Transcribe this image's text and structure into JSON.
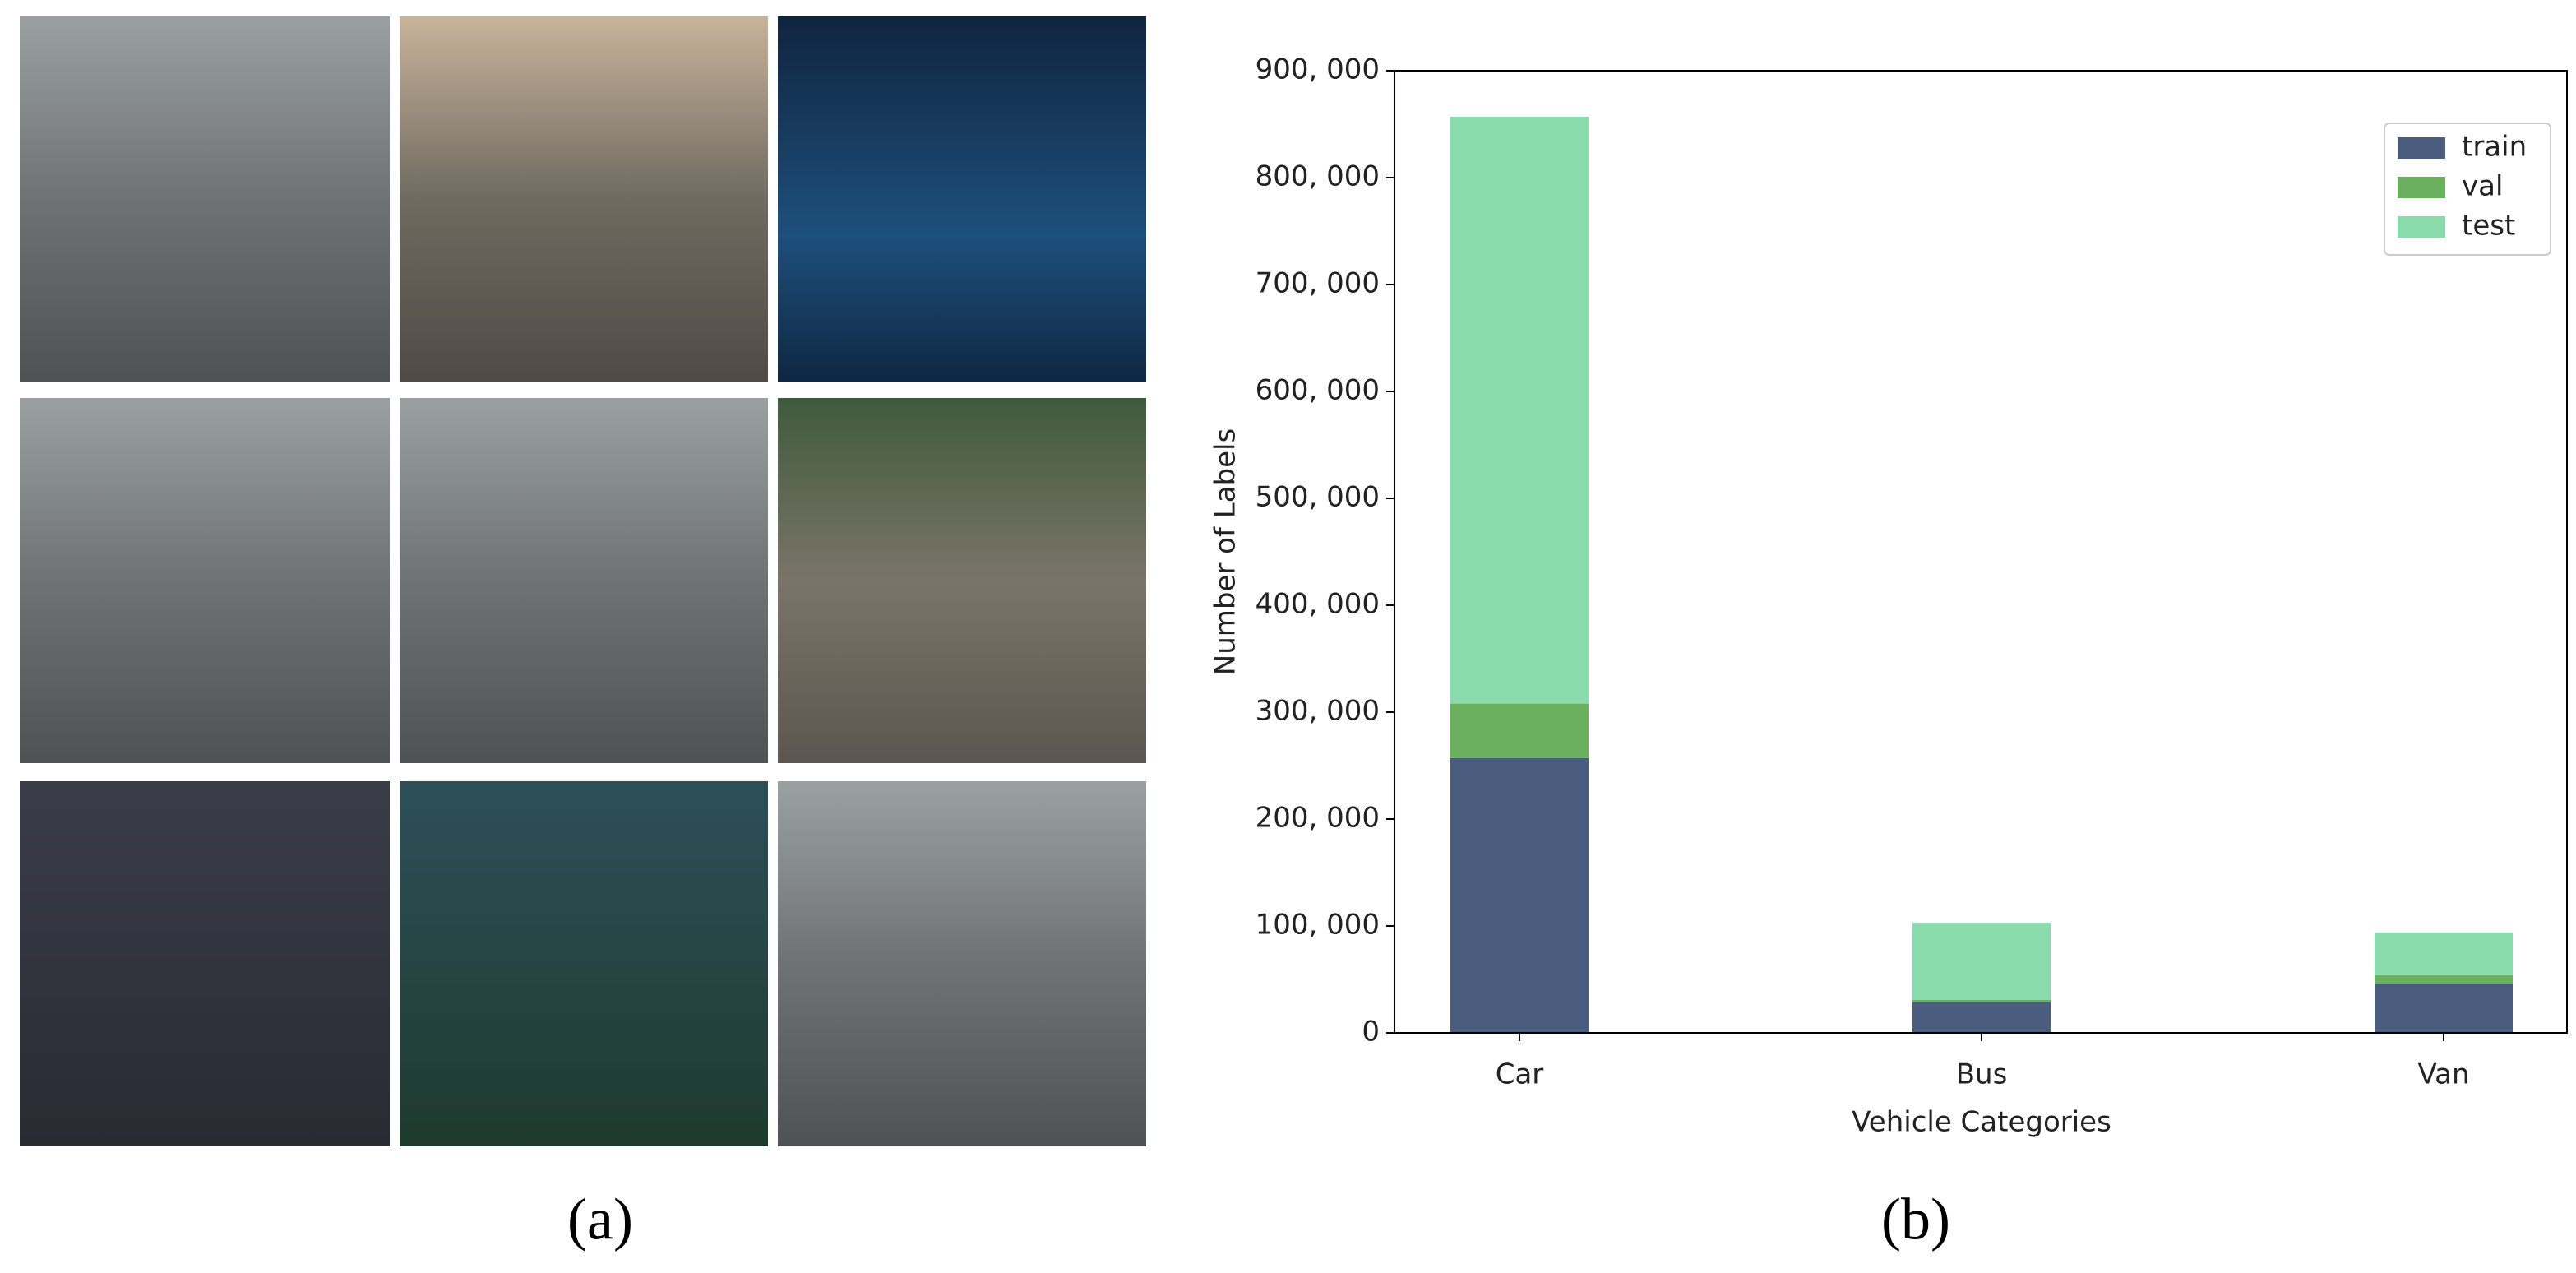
{
  "chart_data": {
    "type": "stacked_bar",
    "xlabel": "Vehicle Categories",
    "ylabel": "Number of Labels",
    "categories": [
      "Car",
      "Bus",
      "Van"
    ],
    "series": [
      {
        "name": "train",
        "color": "#4a5d7e",
        "values": [
          257000,
          29000,
          46000
        ]
      },
      {
        "name": "val",
        "color": "#6bb05f",
        "values": [
          51000,
          2000,
          8000
        ]
      },
      {
        "name": "test",
        "color": "#89dbac",
        "values": [
          549000,
          72000,
          40000
        ]
      }
    ],
    "ylim": [
      0,
      900000
    ],
    "yticks": [
      0,
      {
        "value": 100000,
        "label": "100, 000"
      },
      {
        "value": 200000,
        "label": "200, 000"
      },
      {
        "value": 300000,
        "label": "300, 000"
      },
      {
        "value": 400000,
        "label": "400, 000"
      },
      {
        "value": 500000,
        "label": "500, 000"
      },
      {
        "value": 600000,
        "label": "600, 000"
      },
      {
        "value": 700000,
        "label": "700, 000"
      },
      {
        "value": 800000,
        "label": "800, 000"
      },
      {
        "value": 900000,
        "label": "900, 000"
      }
    ],
    "legend": "upper right",
    "grid": false
  },
  "panel_labels": [
    "(a)",
    "(b)"
  ]
}
